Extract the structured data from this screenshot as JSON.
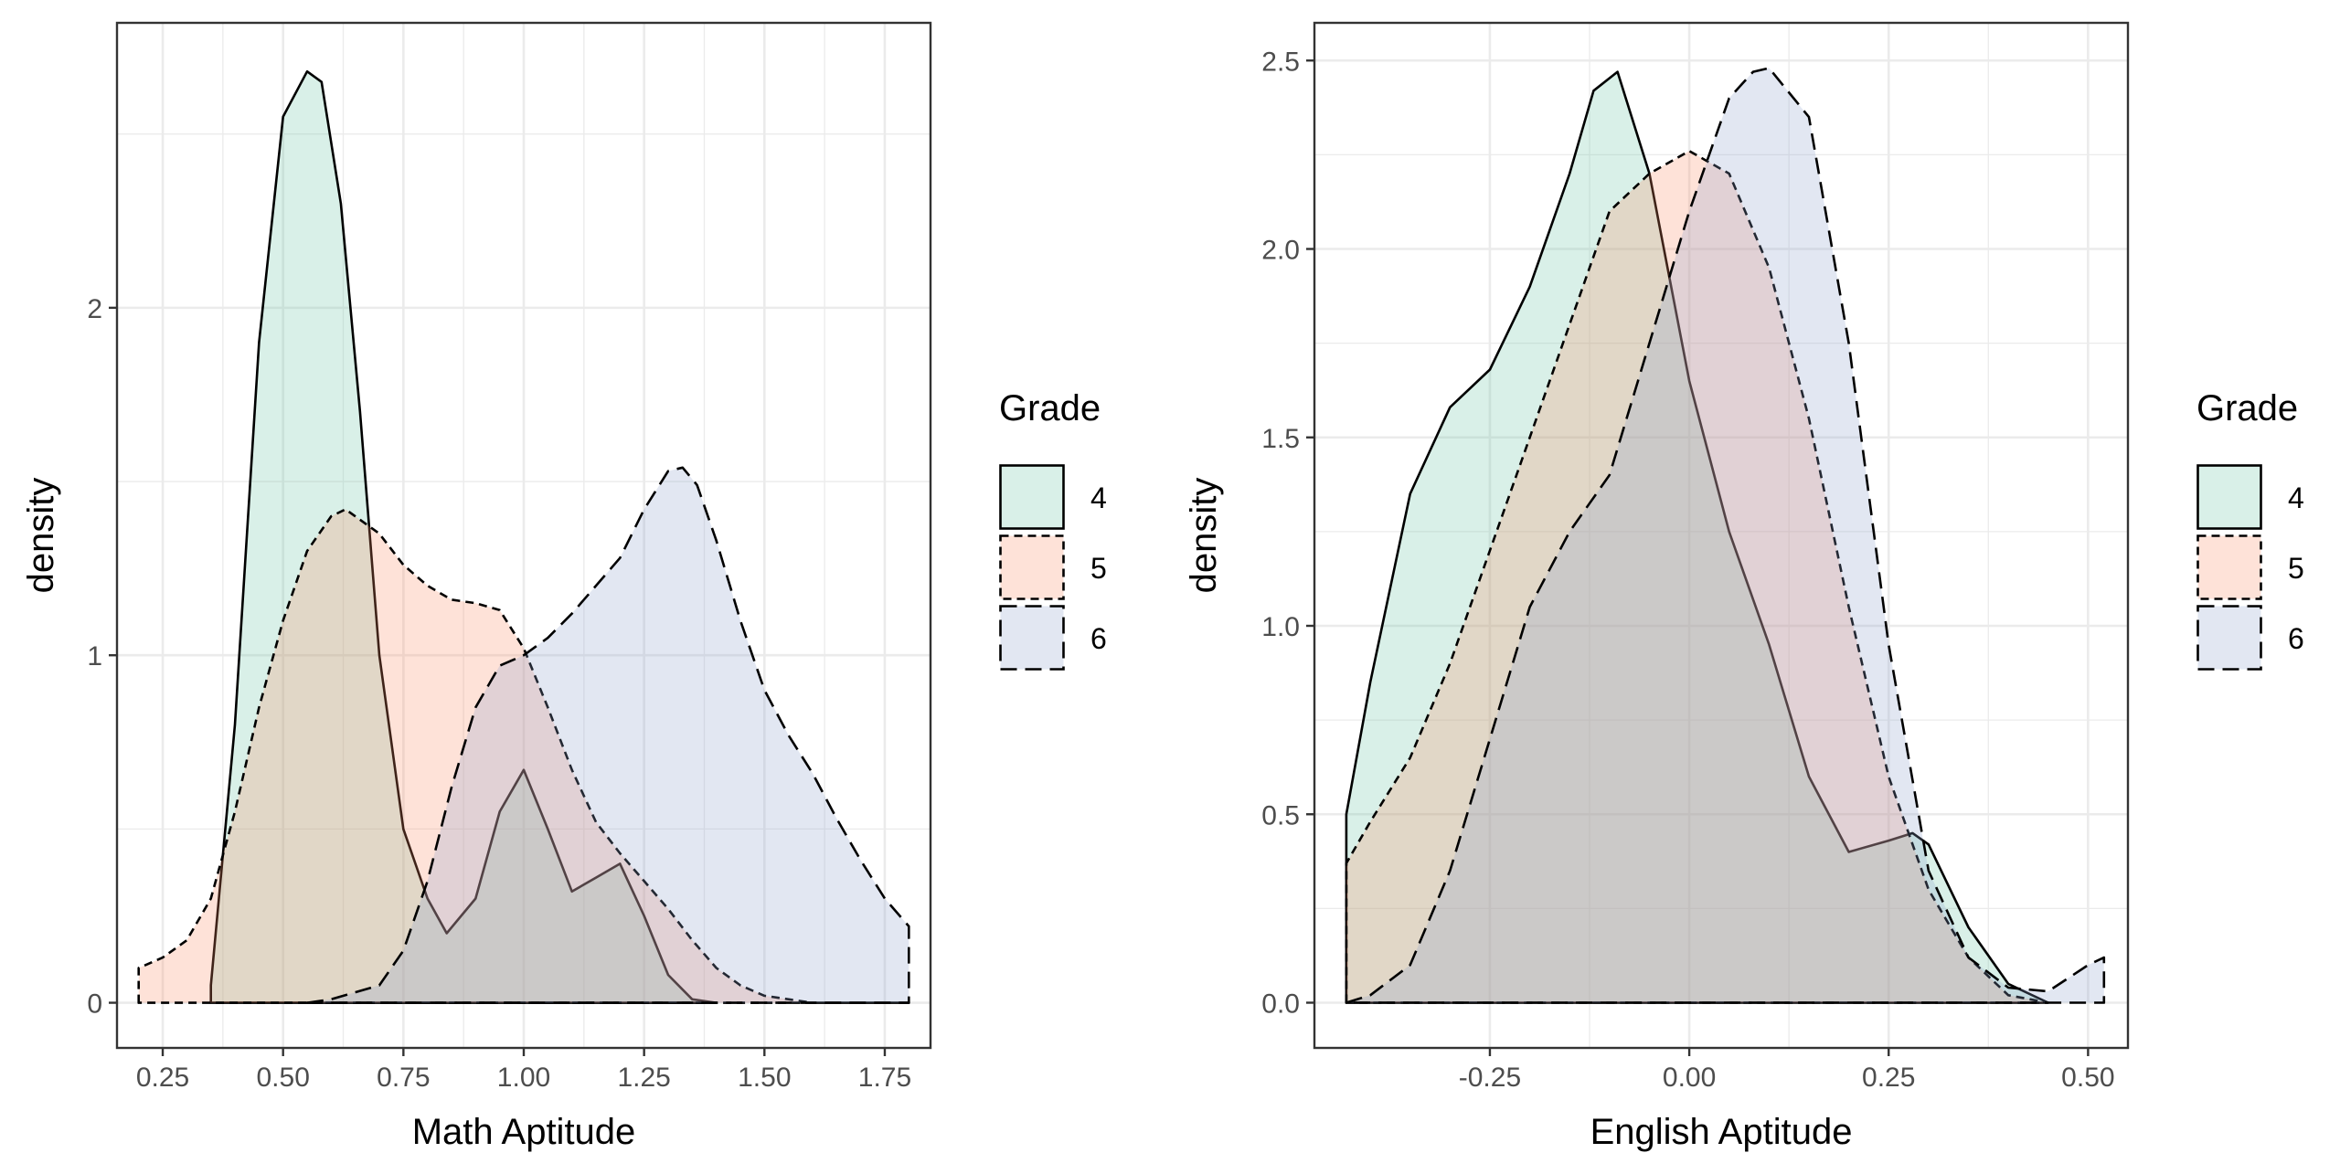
{
  "chart_data": [
    {
      "type": "area",
      "subtype": "density",
      "xlabel": "Math Aptitude",
      "ylabel": "density",
      "xlim": [
        0.155,
        1.845
      ],
      "ylim": [
        -0.13,
        2.82
      ],
      "x_ticks": [
        0.25,
        0.5,
        0.75,
        1.0,
        1.25,
        1.5,
        1.75
      ],
      "x_tick_labels": [
        "0.25",
        "0.50",
        "0.75",
        "1.00",
        "1.25",
        "1.50",
        "1.75"
      ],
      "y_ticks": [
        0,
        1,
        2
      ],
      "y_tick_labels": [
        "0",
        "1",
        "2"
      ],
      "grid": true,
      "legend": {
        "title": "Grade",
        "position": "right",
        "entries": [
          {
            "label": "4",
            "fill": "#66c2a5",
            "linetype": "solid"
          },
          {
            "label": "5",
            "fill": "#fc8d62",
            "linetype": "dashed-short"
          },
          {
            "label": "6",
            "fill": "#8da0cb",
            "linetype": "dashed"
          }
        ]
      },
      "series": [
        {
          "name": "4",
          "x": [
            0.35,
            0.4,
            0.45,
            0.5,
            0.55,
            0.58,
            0.62,
            0.66,
            0.7,
            0.75,
            0.8,
            0.84,
            0.9,
            0.95,
            1.0,
            1.05,
            1.1,
            1.15,
            1.2,
            1.25,
            1.3,
            1.35,
            1.4
          ],
          "y": [
            0.05,
            0.8,
            1.9,
            2.55,
            2.68,
            2.65,
            2.3,
            1.7,
            1.0,
            0.5,
            0.3,
            0.2,
            0.3,
            0.55,
            0.67,
            0.5,
            0.32,
            0.36,
            0.4,
            0.25,
            0.08,
            0.01,
            0.0
          ]
        },
        {
          "name": "5",
          "x": [
            0.2,
            0.25,
            0.3,
            0.35,
            0.4,
            0.45,
            0.5,
            0.55,
            0.6,
            0.63,
            0.7,
            0.75,
            0.8,
            0.85,
            0.9,
            0.95,
            1.0,
            1.05,
            1.1,
            1.15,
            1.2,
            1.25,
            1.3,
            1.35,
            1.4,
            1.45,
            1.5,
            1.6,
            1.7,
            1.8
          ],
          "y": [
            0.1,
            0.13,
            0.18,
            0.3,
            0.55,
            0.85,
            1.1,
            1.3,
            1.4,
            1.42,
            1.35,
            1.26,
            1.2,
            1.16,
            1.15,
            1.13,
            1.02,
            0.85,
            0.67,
            0.52,
            0.43,
            0.35,
            0.27,
            0.18,
            0.1,
            0.05,
            0.02,
            0.0,
            0.0,
            0.0
          ]
        },
        {
          "name": "6",
          "x": [
            0.55,
            0.6,
            0.7,
            0.75,
            0.8,
            0.85,
            0.9,
            0.95,
            1.0,
            1.05,
            1.1,
            1.15,
            1.2,
            1.25,
            1.3,
            1.33,
            1.36,
            1.4,
            1.45,
            1.5,
            1.55,
            1.6,
            1.65,
            1.7,
            1.75,
            1.8
          ],
          "y": [
            0.0,
            0.01,
            0.05,
            0.15,
            0.35,
            0.62,
            0.85,
            0.97,
            1.0,
            1.05,
            1.12,
            1.2,
            1.28,
            1.42,
            1.53,
            1.54,
            1.49,
            1.33,
            1.1,
            0.9,
            0.77,
            0.66,
            0.53,
            0.41,
            0.3,
            0.22
          ]
        }
      ]
    },
    {
      "type": "area",
      "subtype": "density",
      "xlabel": "English Aptitude",
      "ylabel": "density",
      "xlim": [
        -0.47,
        0.55
      ],
      "ylim": [
        -0.12,
        2.6
      ],
      "x_ticks": [
        -0.25,
        0.0,
        0.25,
        0.5
      ],
      "x_tick_labels": [
        "-0.25",
        "0.00",
        "0.25",
        "0.50"
      ],
      "y_ticks": [
        0.0,
        0.5,
        1.0,
        1.5,
        2.0,
        2.5
      ],
      "y_tick_labels": [
        "0.0",
        "0.5",
        "1.0",
        "1.5",
        "2.0",
        "2.5"
      ],
      "grid": true,
      "legend": {
        "title": "Grade",
        "position": "right",
        "entries": [
          {
            "label": "4",
            "fill": "#66c2a5",
            "linetype": "solid"
          },
          {
            "label": "5",
            "fill": "#fc8d62",
            "linetype": "dashed-short"
          },
          {
            "label": "6",
            "fill": "#8da0cb",
            "linetype": "dashed"
          }
        ]
      },
      "series": [
        {
          "name": "4",
          "x": [
            -0.43,
            -0.4,
            -0.35,
            -0.3,
            -0.25,
            -0.2,
            -0.15,
            -0.12,
            -0.09,
            -0.05,
            0.0,
            0.05,
            0.1,
            0.15,
            0.2,
            0.25,
            0.28,
            0.3,
            0.35,
            0.4,
            0.45
          ],
          "y": [
            0.5,
            0.85,
            1.35,
            1.58,
            1.68,
            1.9,
            2.2,
            2.42,
            2.47,
            2.2,
            1.65,
            1.25,
            0.95,
            0.6,
            0.4,
            0.43,
            0.45,
            0.42,
            0.2,
            0.05,
            0.0
          ]
        },
        {
          "name": "5",
          "x": [
            -0.43,
            -0.4,
            -0.35,
            -0.3,
            -0.25,
            -0.2,
            -0.15,
            -0.1,
            -0.05,
            0.0,
            0.05,
            0.1,
            0.15,
            0.2,
            0.25,
            0.3,
            0.35,
            0.4,
            0.45
          ],
          "y": [
            0.37,
            0.48,
            0.65,
            0.9,
            1.2,
            1.5,
            1.8,
            2.1,
            2.2,
            2.26,
            2.2,
            1.95,
            1.55,
            1.05,
            0.6,
            0.3,
            0.12,
            0.02,
            0.0
          ]
        },
        {
          "name": "6",
          "x": [
            -0.43,
            -0.4,
            -0.35,
            -0.3,
            -0.25,
            -0.2,
            -0.15,
            -0.1,
            -0.05,
            0.0,
            0.05,
            0.08,
            0.1,
            0.15,
            0.2,
            0.25,
            0.3,
            0.35,
            0.4,
            0.45,
            0.5,
            0.52
          ],
          "y": [
            0.0,
            0.02,
            0.1,
            0.35,
            0.7,
            1.05,
            1.25,
            1.4,
            1.75,
            2.1,
            2.4,
            2.47,
            2.48,
            2.35,
            1.75,
            0.95,
            0.35,
            0.12,
            0.04,
            0.03,
            0.1,
            0.12
          ]
        }
      ]
    }
  ]
}
